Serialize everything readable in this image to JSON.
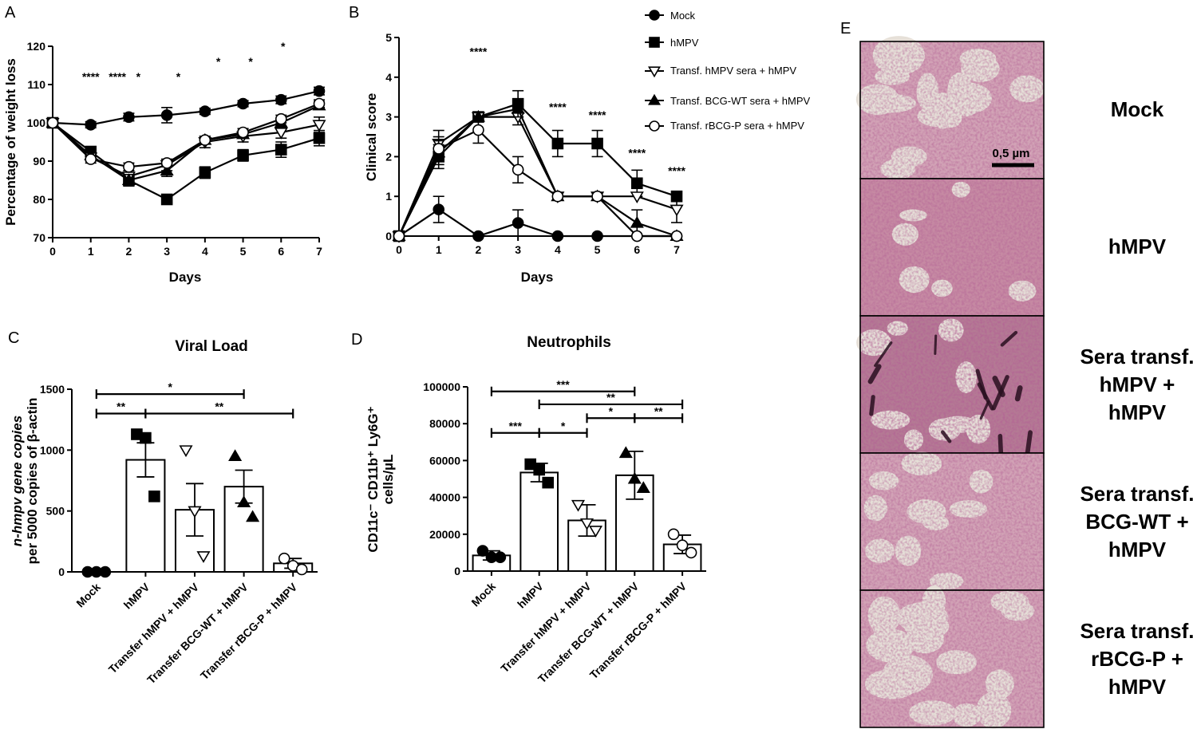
{
  "panel_letters": [
    "A",
    "B",
    "C",
    "D",
    "E"
  ],
  "colors": {
    "ink": "#000000",
    "tissue_pink": "#c98aa0",
    "tissue_dark": "#3a1830",
    "airspace": "#e6e0d8"
  },
  "legend": [
    "Mock",
    "hMPV",
    "Transf. hMPV sera + hMPV",
    "Transf. BCG-WT sera + hMPV",
    "Transf. rBCG-P sera + hMPV"
  ],
  "chart_data": [
    {
      "panel": "A",
      "type": "line",
      "title": "",
      "xlabel": "Days",
      "ylabel": "Percentage of weight loss",
      "xlim": [
        0,
        7
      ],
      "ylim": [
        70,
        120
      ],
      "x": [
        0,
        1,
        2,
        3,
        4,
        5,
        6,
        7
      ],
      "xticks": [
        "0",
        "1",
        "2",
        "3",
        "4",
        "5",
        "6",
        "7"
      ],
      "yticks": [
        "70",
        "80",
        "90",
        "100",
        "110",
        "120"
      ],
      "series": [
        {
          "name": "Mock",
          "marker": "circle-filled",
          "values": [
            100,
            99.5,
            101.5,
            102,
            103,
            105,
            106,
            108.3
          ],
          "err": [
            0.5,
            0.8,
            1,
            2,
            0.8,
            0.8,
            1,
            1
          ]
        },
        {
          "name": "hMPV",
          "marker": "square-filled",
          "values": [
            100,
            92.5,
            85,
            80,
            87,
            91.5,
            93,
            96
          ],
          "err": [
            0.5,
            1,
            1.5,
            1,
            1.5,
            1.5,
            2,
            2
          ]
        },
        {
          "name": "Transf. hMPV sera + hMPV",
          "marker": "triangle-down-open",
          "values": [
            100,
            91,
            86,
            89,
            95,
            96.5,
            97.5,
            99.5
          ],
          "err": [
            0.5,
            1,
            1.5,
            1.5,
            1.5,
            1.5,
            1.5,
            2
          ]
        },
        {
          "name": "Transf. BCG-WT sera + hMPV",
          "marker": "triangle-up-filled",
          "values": [
            100,
            91.5,
            85,
            87.5,
            95.5,
            97,
            100,
            104.5
          ],
          "err": [
            0.5,
            1,
            1.5,
            1.5,
            1,
            1,
            1,
            1
          ]
        },
        {
          "name": "Transf. rBCG-P sera + hMPV",
          "marker": "circle-open",
          "values": [
            100,
            90.5,
            88.5,
            89.5,
            95.5,
            97.5,
            101,
            105
          ],
          "err": [
            0.5,
            1,
            1,
            1,
            1,
            1,
            1,
            1
          ]
        }
      ],
      "annotations": [
        {
          "x": 1,
          "label": "****",
          "y": 111
        },
        {
          "x": 1.7,
          "label": "****",
          "y": 111
        },
        {
          "x": 2.25,
          "label": "*",
          "y": 111
        },
        {
          "x": 3.3,
          "label": "*",
          "y": 111
        },
        {
          "x": 4.35,
          "label": "*",
          "y": 115
        },
        {
          "x": 5.2,
          "label": "*",
          "y": 115
        },
        {
          "x": 6.05,
          "label": "*",
          "y": 119
        }
      ]
    },
    {
      "panel": "B",
      "type": "line",
      "title": "",
      "xlabel": "Days",
      "ylabel": "Clinical score",
      "xlim": [
        0,
        7
      ],
      "ylim": [
        0,
        5
      ],
      "x": [
        0,
        1,
        2,
        3,
        4,
        5,
        6,
        7
      ],
      "xticks": [
        "0",
        "1",
        "2",
        "3",
        "4",
        "5",
        "6",
        "7"
      ],
      "yticks": [
        "0",
        "1",
        "2",
        "3",
        "4",
        "5"
      ],
      "series": [
        {
          "name": "Mock",
          "marker": "circle-filled",
          "values": [
            0,
            0.67,
            0,
            0.33,
            0,
            0,
            0,
            0
          ],
          "err": [
            0,
            0.33,
            0,
            0.33,
            0,
            0,
            0,
            0
          ]
        },
        {
          "name": "hMPV",
          "marker": "square-filled",
          "values": [
            0,
            2,
            3,
            3.33,
            2.33,
            2.33,
            1.33,
            1
          ],
          "err": [
            0,
            0.3,
            0,
            0.33,
            0.33,
            0.33,
            0.33,
            0
          ]
        },
        {
          "name": "Transf. hMPV sera + hMPV",
          "marker": "triangle-down-open",
          "values": [
            0,
            2.33,
            3,
            3,
            1,
            1,
            1,
            0.67
          ],
          "err": [
            0,
            0.33,
            0,
            0.2,
            0,
            0,
            0,
            0.33
          ]
        },
        {
          "name": "Transf. BCG-WT sera + hMPV",
          "marker": "triangle-up-filled",
          "values": [
            0,
            2.1,
            3,
            3.2,
            1,
            1,
            0.33,
            0
          ],
          "err": [
            0,
            0.3,
            0,
            0.2,
            0,
            0,
            0.33,
            0
          ]
        },
        {
          "name": "Transf. rBCG-P sera + hMPV",
          "marker": "circle-open",
          "values": [
            0,
            2.2,
            2.67,
            1.67,
            1,
            1,
            0,
            0
          ],
          "err": [
            0,
            0.3,
            0.33,
            0.33,
            0,
            0,
            0,
            0
          ]
        }
      ],
      "annotations": [
        {
          "x": 2,
          "label": "****",
          "y": 4.55
        },
        {
          "x": 4,
          "label": "****",
          "y": 3.15
        },
        {
          "x": 5,
          "label": "****",
          "y": 2.95
        },
        {
          "x": 6,
          "label": "****",
          "y": 2
        },
        {
          "x": 7,
          "label": "****",
          "y": 1.55
        }
      ]
    },
    {
      "panel": "C",
      "type": "bar",
      "title": "Viral Load",
      "xlabel": "",
      "ylabel": [
        "n-hmpv gene copies",
        "per 5000 copies of β-actin"
      ],
      "ylim": [
        0,
        1500
      ],
      "yticks": [
        "0",
        "500",
        "1000",
        "1500"
      ],
      "categories": [
        "Mock",
        "hMPV",
        "Transfer hMPV + hMPV",
        "Transfer BCG-WT + hMPV",
        "Transfer rBCG-P + hMPV"
      ],
      "values": [
        0,
        920,
        510,
        700,
        70
      ],
      "err": [
        0,
        140,
        215,
        135,
        40
      ],
      "markers": [
        "circle-filled",
        "square-filled",
        "triangle-down-open",
        "triangle-up-filled",
        "circle-open"
      ],
      "points": [
        [
          0,
          0,
          0
        ],
        [
          1130,
          1100,
          620
        ],
        [
          1000,
          500,
          130
        ],
        [
          950,
          570,
          450
        ],
        [
          110,
          50,
          20
        ]
      ],
      "brackets": [
        {
          "from": 0,
          "to": 1,
          "label": "**",
          "y": 1300
        },
        {
          "from": 1,
          "to": 4,
          "label": "**",
          "y": 1300
        },
        {
          "from": 0,
          "to": 3,
          "label": "*",
          "y": 1460
        }
      ]
    },
    {
      "panel": "D",
      "type": "bar",
      "title": "Neutrophils",
      "xlabel": "",
      "ylabel": [
        "CD11c⁻ CD11b⁺ Ly6G⁺",
        "cells/µL"
      ],
      "ylim": [
        0,
        100000
      ],
      "yticks": [
        "0",
        "20000",
        "40000",
        "60000",
        "80000",
        "100000"
      ],
      "categories": [
        "Mock",
        "hMPV",
        "Transfer hMPV + hMPV",
        "Transfer BCG-WT + hMPV",
        "Transfer rBCG-P + hMPV"
      ],
      "values": [
        8500,
        53500,
        27500,
        52000,
        14500
      ],
      "err": [
        2500,
        5000,
        8500,
        13000,
        5000
      ],
      "markers": [
        "circle-filled",
        "square-filled",
        "triangle-down-open",
        "triangle-up-filled",
        "circle-open"
      ],
      "points": [
        [
          11000,
          7500,
          7500
        ],
        [
          58000,
          55000,
          48000
        ],
        [
          36000,
          26000,
          22000
        ],
        [
          64000,
          50000,
          45000
        ],
        [
          20000,
          14000,
          10000
        ]
      ],
      "brackets": [
        {
          "from": 0,
          "to": 1,
          "label": "***",
          "y": 75000
        },
        {
          "from": 1,
          "to": 2,
          "label": "*",
          "y": 75000
        },
        {
          "from": 2,
          "to": 3,
          "label": "*",
          "y": 83000
        },
        {
          "from": 3,
          "to": 4,
          "label": "**",
          "y": 83000
        },
        {
          "from": 1,
          "to": 4,
          "label": "**",
          "y": 90500
        },
        {
          "from": 0,
          "to": 3,
          "label": "***",
          "y": 97500
        }
      ]
    }
  ],
  "histology": {
    "scale_bar_label": "0,5 µm",
    "panels": [
      {
        "label_lines": [
          "Mock"
        ],
        "style": "open"
      },
      {
        "label_lines": [
          "hMPV"
        ],
        "style": "dense"
      },
      {
        "label_lines": [
          "Sera transf.",
          "hMPV +",
          "hMPV"
        ],
        "style": "dark"
      },
      {
        "label_lines": [
          "Sera transf.",
          "BCG-WT +",
          "hMPV"
        ],
        "style": "mixed"
      },
      {
        "label_lines": [
          "Sera transf.",
          "rBCG-P +",
          "hMPV"
        ],
        "style": "open"
      }
    ]
  }
}
